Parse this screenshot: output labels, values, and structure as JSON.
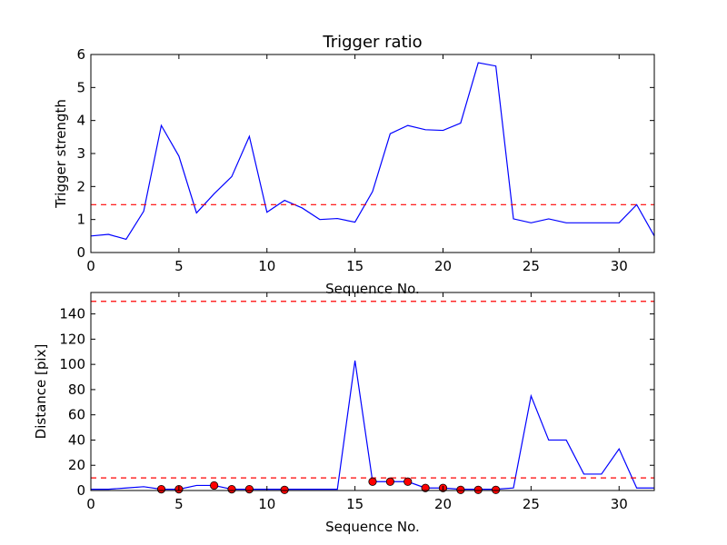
{
  "chart_data": [
    {
      "type": "line",
      "title": "Trigger ratio",
      "xlabel": "Sequence No.",
      "ylabel": "Trigger strength",
      "xlim": [
        0,
        32
      ],
      "ylim": [
        0,
        6
      ],
      "xticks": [
        0,
        5,
        10,
        15,
        20,
        25,
        30
      ],
      "yticks": [
        0,
        1,
        2,
        3,
        4,
        5,
        6
      ],
      "grid": false,
      "series": [
        {
          "color": "#0000ff",
          "x": [
            0,
            1,
            2,
            3,
            4,
            5,
            6,
            7,
            8,
            9,
            10,
            11,
            12,
            13,
            14,
            15,
            16,
            17,
            18,
            19,
            20,
            21,
            22,
            23,
            24,
            25,
            26,
            27,
            28,
            29,
            30,
            31,
            32
          ],
          "y": [
            0.5,
            0.55,
            0.4,
            1.25,
            3.85,
            2.92,
            1.2,
            1.78,
            2.3,
            3.52,
            1.22,
            1.58,
            1.35,
            1.0,
            1.03,
            0.92,
            1.85,
            3.6,
            3.85,
            3.72,
            3.7,
            3.92,
            5.75,
            5.65,
            1.02,
            0.9,
            1.02,
            0.9,
            0.9,
            0.9,
            0.9,
            1.45,
            0.5
          ]
        }
      ],
      "hlines": [
        {
          "y": 1.45,
          "color": "#ff0000",
          "style": "dashed"
        }
      ]
    },
    {
      "type": "line",
      "title": "",
      "xlabel": "Sequence No.",
      "ylabel": "Distance [pix]",
      "xlim": [
        0,
        32
      ],
      "ylim": [
        0,
        157
      ],
      "xticks": [
        0,
        5,
        10,
        15,
        20,
        25,
        30
      ],
      "yticks": [
        0,
        20,
        40,
        60,
        80,
        100,
        120,
        140
      ],
      "grid": false,
      "series": [
        {
          "color": "#0000ff",
          "x": [
            0,
            1,
            2,
            3,
            4,
            5,
            6,
            7,
            8,
            9,
            10,
            11,
            12,
            13,
            14,
            15,
            16,
            17,
            18,
            19,
            20,
            21,
            22,
            23,
            24,
            25,
            26,
            27,
            28,
            29,
            30,
            31,
            32
          ],
          "y": [
            1,
            1,
            2,
            3,
            1,
            1,
            4,
            4,
            1,
            1,
            1,
            1,
            1,
            1,
            1,
            103,
            7,
            7,
            7,
            2,
            2,
            1,
            1,
            1,
            2,
            75,
            40,
            40,
            13,
            13,
            33,
            2,
            2
          ]
        }
      ],
      "markers": {
        "color": "#ff0000",
        "x": [
          4,
          5,
          7,
          8,
          9,
          11,
          16,
          17,
          18,
          19,
          20,
          21,
          22,
          23
        ],
        "y": [
          1,
          1,
          4,
          1,
          1,
          0.5,
          7,
          7,
          7,
          2,
          2,
          0.5,
          0.5,
          0.5
        ]
      },
      "hlines": [
        {
          "y": 150,
          "color": "#ff0000",
          "style": "dashed"
        },
        {
          "y": 10,
          "color": "#ff0000",
          "style": "dashed"
        }
      ]
    }
  ]
}
